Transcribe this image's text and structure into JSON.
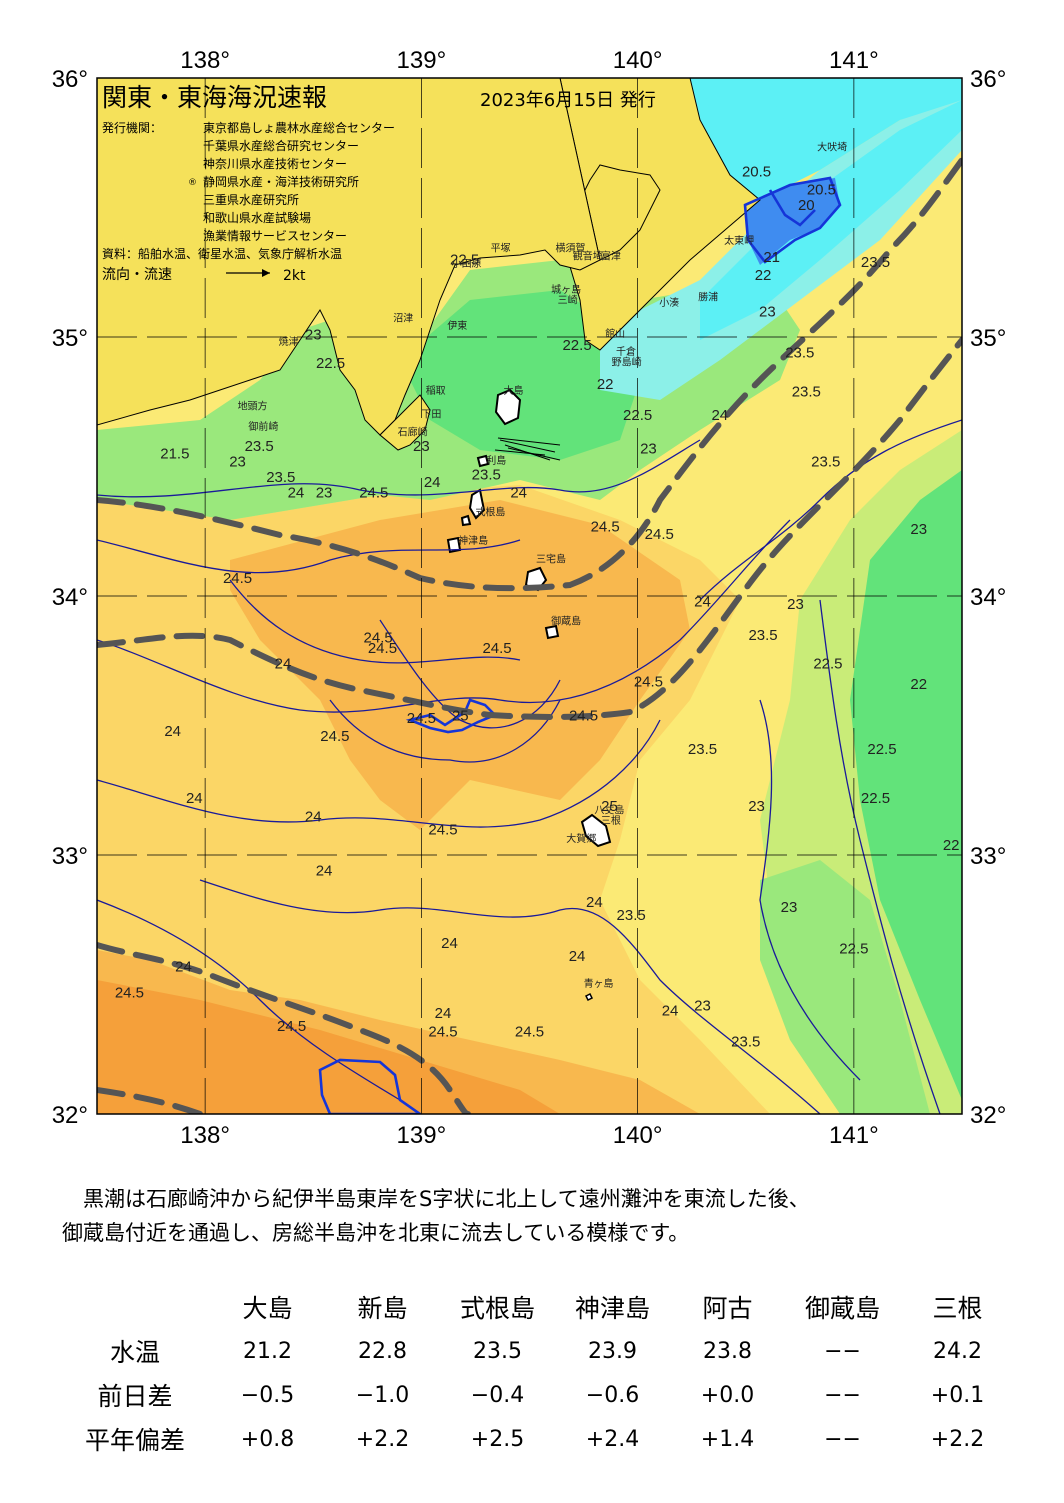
{
  "map": {
    "title": "関東・東海海況速報",
    "issue_date": "2023年6月15日 発行",
    "issuers_label": "発行機関：",
    "issuers": [
      "東京都島しょ農林水産総合センター",
      "千葉県水産総合研究センター",
      "神奈川県水産技術センター",
      "静岡県水産・海洋技術研究所",
      "三重県水産研究所",
      "和歌山県水産試験場",
      "漁業情報サービスセンター"
    ],
    "issuer_mark": "®",
    "sources": "資料：船舶水温、衛星水温、気象庁解析水温",
    "legend_label": "流向・流速",
    "legend_speed": "2kt",
    "lon_ticks": [
      "138°",
      "139°",
      "140°",
      "141°"
    ],
    "lat_ticks": [
      "36°",
      "35°",
      "34°",
      "33°",
      "32°"
    ],
    "lon_values": [
      138,
      139,
      140,
      141
    ],
    "lat_values": [
      36,
      35,
      34,
      33,
      32
    ],
    "isotherm_labels": [
      {
        "t": "20.5",
        "lon": 140.55,
        "lat": 35.62
      },
      {
        "t": "20.5",
        "lon": 140.85,
        "lat": 35.55
      },
      {
        "t": "20",
        "lon": 140.78,
        "lat": 35.49
      },
      {
        "t": "21",
        "lon": 140.62,
        "lat": 35.29
      },
      {
        "t": "22",
        "lon": 140.58,
        "lat": 35.22
      },
      {
        "t": "23",
        "lon": 140.6,
        "lat": 35.08
      },
      {
        "t": "23.5",
        "lon": 141.1,
        "lat": 35.27
      },
      {
        "t": "23.5",
        "lon": 140.75,
        "lat": 34.92
      },
      {
        "t": "23.5",
        "lon": 140.78,
        "lat": 34.77
      },
      {
        "t": "23.5",
        "lon": 140.87,
        "lat": 34.5
      },
      {
        "t": "22.5",
        "lon": 139.2,
        "lat": 35.28
      },
      {
        "t": "22.5",
        "lon": 139.72,
        "lat": 34.95
      },
      {
        "t": "22",
        "lon": 139.85,
        "lat": 34.8
      },
      {
        "t": "22.5",
        "lon": 140.0,
        "lat": 34.68
      },
      {
        "t": "23",
        "lon": 140.05,
        "lat": 34.55
      },
      {
        "t": "24",
        "lon": 140.38,
        "lat": 34.68
      },
      {
        "t": "23",
        "lon": 138.5,
        "lat": 34.99
      },
      {
        "t": "22.5",
        "lon": 138.58,
        "lat": 34.88
      },
      {
        "t": "21.5",
        "lon": 137.86,
        "lat": 34.53
      },
      {
        "t": "23",
        "lon": 138.15,
        "lat": 34.5
      },
      {
        "t": "23.5",
        "lon": 138.25,
        "lat": 34.56
      },
      {
        "t": "23.5",
        "lon": 138.35,
        "lat": 34.44
      },
      {
        "t": "24",
        "lon": 138.42,
        "lat": 34.38
      },
      {
        "t": "23",
        "lon": 138.55,
        "lat": 34.38
      },
      {
        "t": "24.5",
        "lon": 138.78,
        "lat": 34.38
      },
      {
        "t": "24",
        "lon": 139.05,
        "lat": 34.42
      },
      {
        "t": "23",
        "lon": 139.0,
        "lat": 34.56
      },
      {
        "t": "23.5",
        "lon": 139.3,
        "lat": 34.45
      },
      {
        "t": "24",
        "lon": 139.45,
        "lat": 34.38
      },
      {
        "t": "24.5",
        "lon": 139.85,
        "lat": 34.25
      },
      {
        "t": "24.5",
        "lon": 140.1,
        "lat": 34.22
      },
      {
        "t": "23",
        "lon": 141.3,
        "lat": 34.24
      },
      {
        "t": "24.5",
        "lon": 138.15,
        "lat": 34.05
      },
      {
        "t": "24.5",
        "lon": 138.8,
        "lat": 33.82
      },
      {
        "t": "24.5",
        "lon": 138.82,
        "lat": 33.78
      },
      {
        "t": "24",
        "lon": 138.36,
        "lat": 33.72
      },
      {
        "t": "24.5",
        "lon": 139.35,
        "lat": 33.78
      },
      {
        "t": "24.5",
        "lon": 140.05,
        "lat": 33.65
      },
      {
        "t": "24",
        "lon": 140.3,
        "lat": 33.96
      },
      {
        "t": "23",
        "lon": 140.73,
        "lat": 33.95
      },
      {
        "t": "23.5",
        "lon": 140.58,
        "lat": 33.83
      },
      {
        "t": "22.5",
        "lon": 140.88,
        "lat": 33.72
      },
      {
        "t": "22",
        "lon": 141.3,
        "lat": 33.64
      },
      {
        "t": "24.5",
        "lon": 139.0,
        "lat": 33.51
      },
      {
        "t": "25",
        "lon": 139.18,
        "lat": 33.52
      },
      {
        "t": "24.5",
        "lon": 139.75,
        "lat": 33.52
      },
      {
        "t": "24",
        "lon": 137.85,
        "lat": 33.46
      },
      {
        "t": "24.5",
        "lon": 138.6,
        "lat": 33.44
      },
      {
        "t": "23.5",
        "lon": 140.3,
        "lat": 33.39
      },
      {
        "t": "22.5",
        "lon": 141.13,
        "lat": 33.39
      },
      {
        "t": "24",
        "lon": 137.95,
        "lat": 33.2
      },
      {
        "t": "23",
        "lon": 140.55,
        "lat": 33.17
      },
      {
        "t": "22.5",
        "lon": 141.1,
        "lat": 33.2
      },
      {
        "t": "24",
        "lon": 138.5,
        "lat": 33.13
      },
      {
        "t": "24.5",
        "lon": 139.1,
        "lat": 33.08
      },
      {
        "t": "25",
        "lon": 139.87,
        "lat": 33.17
      },
      {
        "t": "22",
        "lon": 141.45,
        "lat": 33.02
      },
      {
        "t": "24",
        "lon": 138.55,
        "lat": 32.92
      },
      {
        "t": "24",
        "lon": 139.8,
        "lat": 32.8
      },
      {
        "t": "23.5",
        "lon": 139.97,
        "lat": 32.75
      },
      {
        "t": "23",
        "lon": 140.7,
        "lat": 32.78
      },
      {
        "t": "22.5",
        "lon": 141.0,
        "lat": 32.62
      },
      {
        "t": "23",
        "lon": 140.3,
        "lat": 32.4
      },
      {
        "t": "24",
        "lon": 139.13,
        "lat": 32.64
      },
      {
        "t": "24",
        "lon": 139.72,
        "lat": 32.59
      },
      {
        "t": "24",
        "lon": 137.9,
        "lat": 32.55
      },
      {
        "t": "24.5",
        "lon": 137.65,
        "lat": 32.45
      },
      {
        "t": "24.5",
        "lon": 138.4,
        "lat": 32.32
      },
      {
        "t": "24",
        "lon": 139.1,
        "lat": 32.37
      },
      {
        "t": "24.5",
        "lon": 139.1,
        "lat": 32.3
      },
      {
        "t": "24.5",
        "lon": 139.5,
        "lat": 32.3
      },
      {
        "t": "24",
        "lon": 140.15,
        "lat": 32.38
      },
      {
        "t": "23.5",
        "lon": 140.5,
        "lat": 32.26
      }
    ],
    "place_names": [
      {
        "t": "大吠埼",
        "lon": 140.83,
        "lat": 35.72
      },
      {
        "t": "太東岬",
        "lon": 140.4,
        "lat": 35.36
      },
      {
        "t": "勝浦",
        "lon": 140.28,
        "lat": 35.14
      },
      {
        "t": "小湊",
        "lon": 140.1,
        "lat": 35.12
      },
      {
        "t": "富津",
        "lon": 139.83,
        "lat": 35.3
      },
      {
        "t": "館山",
        "lon": 139.85,
        "lat": 35.0
      },
      {
        "t": "千倉",
        "lon": 139.9,
        "lat": 34.93
      },
      {
        "t": "野島崎",
        "lon": 139.88,
        "lat": 34.89
      },
      {
        "t": "横須賀",
        "lon": 139.62,
        "lat": 35.33
      },
      {
        "t": "平塚",
        "lon": 139.32,
        "lat": 35.33
      },
      {
        "t": "小田原",
        "lon": 139.14,
        "lat": 35.27
      },
      {
        "t": "観音埼",
        "lon": 139.7,
        "lat": 35.3
      },
      {
        "t": "城ヶ島",
        "lon": 139.6,
        "lat": 35.17
      },
      {
        "t": "三崎",
        "lon": 139.63,
        "lat": 35.13
      },
      {
        "t": "大島",
        "lon": 139.38,
        "lat": 34.78
      },
      {
        "t": "伊東",
        "lon": 139.12,
        "lat": 35.03
      },
      {
        "t": "沼津",
        "lon": 138.87,
        "lat": 35.06
      },
      {
        "t": "焼津",
        "lon": 138.34,
        "lat": 34.97
      },
      {
        "t": "稲取",
        "lon": 139.02,
        "lat": 34.78
      },
      {
        "t": "下田",
        "lon": 139.0,
        "lat": 34.69
      },
      {
        "t": "石廊崎",
        "lon": 138.89,
        "lat": 34.62
      },
      {
        "t": "利島",
        "lon": 139.3,
        "lat": 34.51
      },
      {
        "t": "式根島",
        "lon": 139.25,
        "lat": 34.31
      },
      {
        "t": "神津島",
        "lon": 139.17,
        "lat": 34.2
      },
      {
        "t": "三宅島",
        "lon": 139.53,
        "lat": 34.13
      },
      {
        "t": "御蔵島",
        "lon": 139.6,
        "lat": 33.89
      },
      {
        "t": "八丈島",
        "lon": 139.8,
        "lat": 33.16
      },
      {
        "t": "三根",
        "lon": 139.83,
        "lat": 33.12
      },
      {
        "t": "大賀郷",
        "lon": 139.67,
        "lat": 33.05
      },
      {
        "t": "青ヶ島",
        "lon": 139.75,
        "lat": 32.49
      },
      {
        "t": "御前崎",
        "lon": 138.2,
        "lat": 34.64
      },
      {
        "t": "地頭方",
        "lon": 138.15,
        "lat": 34.72
      }
    ],
    "colors": {
      "land": "#f5e15a",
      "cyan": "#5cf0f5",
      "cyan_light": "#8cf0e8",
      "green": "#62e37a",
      "green_light": "#9ae87c",
      "yellow_green": "#c9ec78",
      "yellow": "#fbea75",
      "light_orange": "#fbd666",
      "orange": "#f8b84e",
      "deep_orange": "#f5a03a",
      "blue_iso": "#1535d8",
      "black_iso": "#1a1a9a",
      "kuroshio": "#5a5a5a"
    }
  },
  "summary": {
    "line1": "黒潮は石廊崎沖から紀伊半島東岸をS字状に北上して遠州灘沖を東流した後、",
    "line2": "御蔵島付近を通過し、房総半島沖を北東に流去している模様です。"
  },
  "table": {
    "stations": [
      "大島",
      "新島",
      "式根島",
      "神津島",
      "阿古",
      "御蔵島",
      "三根"
    ],
    "rows": [
      {
        "label": "水温",
        "values": [
          "21.2",
          "22.8",
          "23.5",
          "23.9",
          "23.8",
          "−−",
          "24.2"
        ]
      },
      {
        "label": "前日差",
        "values": [
          "−0.5",
          "−1.0",
          "−0.4",
          "−0.6",
          "+0.0",
          "−−",
          "+0.1"
        ]
      },
      {
        "label": "平年偏差",
        "values": [
          "+0.8",
          "+2.2",
          "+2.5",
          "+2.4",
          "+1.4",
          "−−",
          "+2.2"
        ]
      }
    ]
  }
}
